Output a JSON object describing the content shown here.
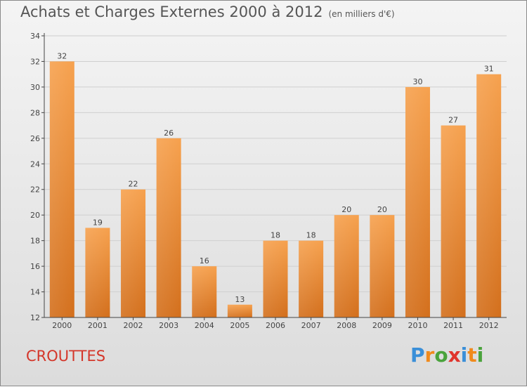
{
  "title": "Achats et Charges Externes 2000 à 2012",
  "unit": "(en milliers d'€)",
  "commune": "CROUTTES",
  "logo": {
    "text": "Proxiti",
    "colors": [
      "#3a8fd8",
      "#f08a1c",
      "#4aa33c",
      "#e0342c",
      "#3a8fd8",
      "#f08a1c",
      "#4aa33c"
    ]
  },
  "colors": {
    "bar": "#f0923a",
    "bar_dark": "#d8701f",
    "grid": "#cfcfcf",
    "axis": "#444444",
    "text": "#444444"
  },
  "chart_data": {
    "type": "bar",
    "categories": [
      "2000",
      "2001",
      "2002",
      "2003",
      "2004",
      "2005",
      "2006",
      "2007",
      "2008",
      "2009",
      "2010",
      "2011",
      "2012"
    ],
    "values": [
      32,
      19,
      22,
      26,
      16,
      13,
      18,
      18,
      20,
      20,
      30,
      27,
      31
    ],
    "ylim": [
      12,
      34
    ],
    "yticks": [
      12,
      14,
      16,
      18,
      20,
      22,
      24,
      26,
      28,
      30,
      32,
      34
    ],
    "grid": true
  }
}
